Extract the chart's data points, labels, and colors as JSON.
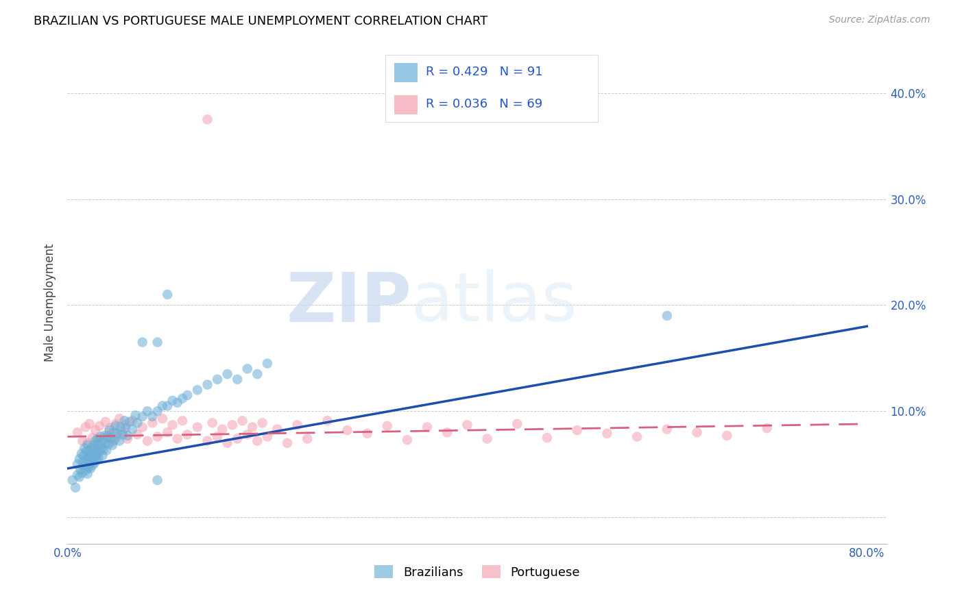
{
  "title": "BRAZILIAN VS PORTUGUESE MALE UNEMPLOYMENT CORRELATION CHART",
  "source": "Source: ZipAtlas.com",
  "ylabel": "Male Unemployment",
  "color_brazilian": "#6baed6",
  "color_portuguese": "#f4a0b0",
  "line_color_brazilian": "#1a4fad",
  "line_color_portuguese": "#d95f7f",
  "R_brazilian": 0.429,
  "N_brazilian": 91,
  "R_portuguese": 0.036,
  "N_portuguese": 69,
  "xlim": [
    0.0,
    0.82
  ],
  "ylim": [
    -0.025,
    0.43
  ],
  "blue_line": [
    0.0,
    0.046,
    0.8,
    0.18
  ],
  "pink_line": [
    0.0,
    0.076,
    0.8,
    0.088
  ],
  "watermark_zip": "ZIP",
  "watermark_atlas": "atlas"
}
